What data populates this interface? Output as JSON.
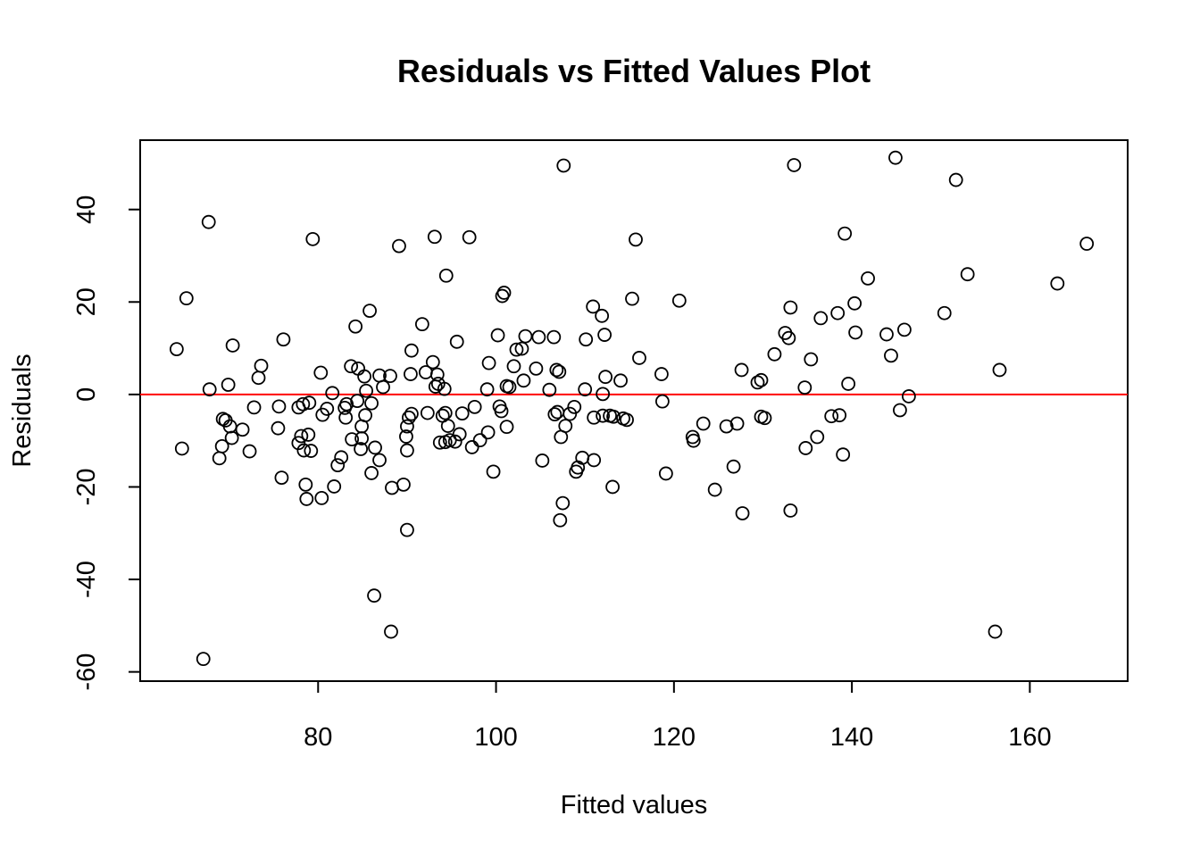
{
  "chart_data": {
    "type": "scatter",
    "title": "Residuals vs Fitted Values Plot",
    "xlabel": "Fitted values",
    "ylabel": "Residuals",
    "xlim": [
      60,
      171
    ],
    "ylim": [
      -62,
      55
    ],
    "x_ticks": [
      80,
      100,
      120,
      140,
      160
    ],
    "y_ticks": [
      -60,
      -40,
      -20,
      0,
      20,
      40
    ],
    "x_tick_labels": [
      "80",
      "100",
      "120",
      "140",
      "160"
    ],
    "y_tick_labels": [
      "-60",
      "-40",
      "-20",
      "0",
      "20",
      "40"
    ],
    "grid": false,
    "reference_line": {
      "y": 0,
      "color": "#ff0000"
    },
    "marker_color": "#000000",
    "series": [
      {
        "points": [
          [
            64.1,
            9.8
          ],
          [
            64.7,
            -11.7
          ],
          [
            65.2,
            20.8
          ],
          [
            67.1,
            -57.2
          ],
          [
            67.7,
            37.3
          ],
          [
            67.8,
            1.1
          ],
          [
            68.9,
            -13.8
          ],
          [
            69.2,
            -11.2
          ],
          [
            69.3,
            -5.3
          ],
          [
            69.6,
            -5.6
          ],
          [
            69.9,
            2.1
          ],
          [
            70.1,
            -6.9
          ],
          [
            70.3,
            -9.4
          ],
          [
            70.4,
            10.6
          ],
          [
            71.5,
            -7.6
          ],
          [
            72.3,
            -12.3
          ],
          [
            72.8,
            -2.8
          ],
          [
            73.3,
            3.6
          ],
          [
            73.6,
            6.2
          ],
          [
            75.5,
            -7.3
          ],
          [
            75.6,
            -2.6
          ],
          [
            75.9,
            -18.0
          ],
          [
            76.1,
            11.9
          ],
          [
            77.8,
            -10.5
          ],
          [
            77.8,
            -2.8
          ],
          [
            78.1,
            -9.0
          ],
          [
            78.3,
            -2.1
          ],
          [
            78.4,
            -12.1
          ],
          [
            78.6,
            -19.5
          ],
          [
            78.7,
            -22.6
          ],
          [
            78.9,
            -8.7
          ],
          [
            79.0,
            -1.8
          ],
          [
            79.2,
            -12.2
          ],
          [
            79.4,
            33.6
          ],
          [
            80.3,
            4.7
          ],
          [
            80.4,
            -22.4
          ],
          [
            80.5,
            -4.4
          ],
          [
            81.0,
            -3.1
          ],
          [
            81.6,
            0.3
          ],
          [
            81.8,
            -19.9
          ],
          [
            82.2,
            -15.3
          ],
          [
            82.6,
            -13.6
          ],
          [
            83.0,
            -2.9
          ],
          [
            83.2,
            -2.1
          ],
          [
            83.1,
            -5.0
          ],
          [
            83.7,
            6.1
          ],
          [
            83.8,
            -9.7
          ],
          [
            84.2,
            14.7
          ],
          [
            84.4,
            -1.4
          ],
          [
            84.5,
            5.6
          ],
          [
            84.8,
            -11.8
          ],
          [
            84.9,
            -6.9
          ],
          [
            84.9,
            -9.5
          ],
          [
            85.2,
            3.9
          ],
          [
            85.3,
            -4.5
          ],
          [
            85.4,
            0.8
          ],
          [
            85.8,
            18.1
          ],
          [
            86.0,
            -1.9
          ],
          [
            86.0,
            -17.0
          ],
          [
            86.3,
            -43.5
          ],
          [
            86.4,
            -11.5
          ],
          [
            86.9,
            4.1
          ],
          [
            86.9,
            -14.2
          ],
          [
            87.3,
            1.6
          ],
          [
            88.2,
            -51.3
          ],
          [
            88.3,
            -20.2
          ],
          [
            88.1,
            4.0
          ],
          [
            89.1,
            32.1
          ],
          [
            89.6,
            -19.5
          ],
          [
            89.9,
            -9.1
          ],
          [
            90.0,
            -29.3
          ],
          [
            90.0,
            -6.9
          ],
          [
            90.0,
            -12.1
          ],
          [
            90.2,
            -5.0
          ],
          [
            90.4,
            4.4
          ],
          [
            90.5,
            -4.2
          ],
          [
            90.5,
            9.5
          ],
          [
            91.7,
            15.2
          ],
          [
            92.1,
            4.8
          ],
          [
            92.3,
            -4.0
          ],
          [
            92.9,
            7.0
          ],
          [
            93.1,
            34.1
          ],
          [
            93.2,
            1.7
          ],
          [
            93.4,
            4.3
          ],
          [
            93.5,
            2.3
          ],
          [
            93.7,
            -10.4
          ],
          [
            94.0,
            -4.6
          ],
          [
            94.2,
            1.2
          ],
          [
            94.3,
            -4.0
          ],
          [
            94.3,
            -10.3
          ],
          [
            94.4,
            25.7
          ],
          [
            94.6,
            -6.8
          ],
          [
            94.8,
            -9.9
          ],
          [
            95.4,
            -10.2
          ],
          [
            95.6,
            11.4
          ],
          [
            95.9,
            -8.6
          ],
          [
            96.2,
            -4.1
          ],
          [
            97.0,
            34.0
          ],
          [
            97.3,
            -11.4
          ],
          [
            97.6,
            -2.7
          ],
          [
            98.2,
            -9.9
          ],
          [
            99.0,
            1.1
          ],
          [
            99.1,
            -8.2
          ],
          [
            99.2,
            6.8
          ],
          [
            99.7,
            -16.7
          ],
          [
            100.2,
            12.8
          ],
          [
            100.4,
            -2.6
          ],
          [
            100.6,
            -3.6
          ],
          [
            100.7,
            21.3
          ],
          [
            100.9,
            22.0
          ],
          [
            101.2,
            -7.0
          ],
          [
            101.2,
            1.8
          ],
          [
            101.5,
            1.6
          ],
          [
            102.0,
            6.1
          ],
          [
            102.3,
            9.7
          ],
          [
            102.9,
            9.9
          ],
          [
            103.1,
            3.0
          ],
          [
            103.3,
            12.6
          ],
          [
            104.5,
            5.6
          ],
          [
            104.8,
            12.4
          ],
          [
            105.2,
            -14.3
          ],
          [
            106.0,
            1.0
          ],
          [
            106.5,
            12.4
          ],
          [
            106.6,
            -4.3
          ],
          [
            106.8,
            5.3
          ],
          [
            106.9,
            -3.8
          ],
          [
            107.1,
            4.9
          ],
          [
            107.2,
            -27.2
          ],
          [
            107.3,
            -9.2
          ],
          [
            107.5,
            -23.5
          ],
          [
            107.6,
            49.5
          ],
          [
            107.8,
            -6.8
          ],
          [
            108.3,
            -4.2
          ],
          [
            108.8,
            -2.7
          ],
          [
            109.0,
            -16.7
          ],
          [
            109.2,
            -15.8
          ],
          [
            109.7,
            -13.7
          ],
          [
            110.0,
            1.1
          ],
          [
            110.1,
            11.9
          ],
          [
            110.9,
            19.0
          ],
          [
            111.0,
            -5.0
          ],
          [
            111.0,
            -14.2
          ],
          [
            111.9,
            17.0
          ],
          [
            112.0,
            0.1
          ],
          [
            112.0,
            -4.6
          ],
          [
            112.2,
            12.9
          ],
          [
            112.3,
            3.8
          ],
          [
            112.8,
            -4.6
          ],
          [
            113.1,
            -20.0
          ],
          [
            113.2,
            -4.8
          ],
          [
            114.0,
            3.0
          ],
          [
            114.3,
            -5.2
          ],
          [
            114.7,
            -5.5
          ],
          [
            115.3,
            20.7
          ],
          [
            115.7,
            33.5
          ],
          [
            116.1,
            7.9
          ],
          [
            118.6,
            4.4
          ],
          [
            118.7,
            -1.5
          ],
          [
            119.1,
            -17.1
          ],
          [
            120.6,
            20.3
          ],
          [
            122.1,
            -9.2
          ],
          [
            122.2,
            -10.0
          ],
          [
            123.3,
            -6.3
          ],
          [
            124.6,
            -20.6
          ],
          [
            125.9,
            -6.9
          ],
          [
            126.7,
            -15.6
          ],
          [
            127.1,
            -6.3
          ],
          [
            127.6,
            5.3
          ],
          [
            127.7,
            -25.7
          ],
          [
            129.4,
            2.6
          ],
          [
            129.8,
            3.1
          ],
          [
            129.8,
            -4.8
          ],
          [
            130.2,
            -5.1
          ],
          [
            131.3,
            8.7
          ],
          [
            132.5,
            13.3
          ],
          [
            132.9,
            12.2
          ],
          [
            133.1,
            18.8
          ],
          [
            133.1,
            -25.1
          ],
          [
            133.5,
            49.6
          ],
          [
            134.7,
            1.5
          ],
          [
            134.8,
            -11.6
          ],
          [
            135.4,
            7.6
          ],
          [
            136.1,
            -9.2
          ],
          [
            136.5,
            16.5
          ],
          [
            137.7,
            -4.7
          ],
          [
            138.4,
            17.6
          ],
          [
            138.6,
            -4.5
          ],
          [
            139.0,
            -13.0
          ],
          [
            139.2,
            34.8
          ],
          [
            139.6,
            2.3
          ],
          [
            140.3,
            19.7
          ],
          [
            140.4,
            13.4
          ],
          [
            141.8,
            25.1
          ],
          [
            143.9,
            13.0
          ],
          [
            144.4,
            8.4
          ],
          [
            144.9,
            51.2
          ],
          [
            145.4,
            -3.4
          ],
          [
            145.9,
            14.0
          ],
          [
            146.4,
            -0.4
          ],
          [
            150.4,
            17.6
          ],
          [
            151.7,
            46.4
          ],
          [
            153.0,
            26.0
          ],
          [
            156.1,
            -51.3
          ],
          [
            156.6,
            5.3
          ],
          [
            163.1,
            24.0
          ],
          [
            166.4,
            32.6
          ]
        ]
      }
    ]
  }
}
